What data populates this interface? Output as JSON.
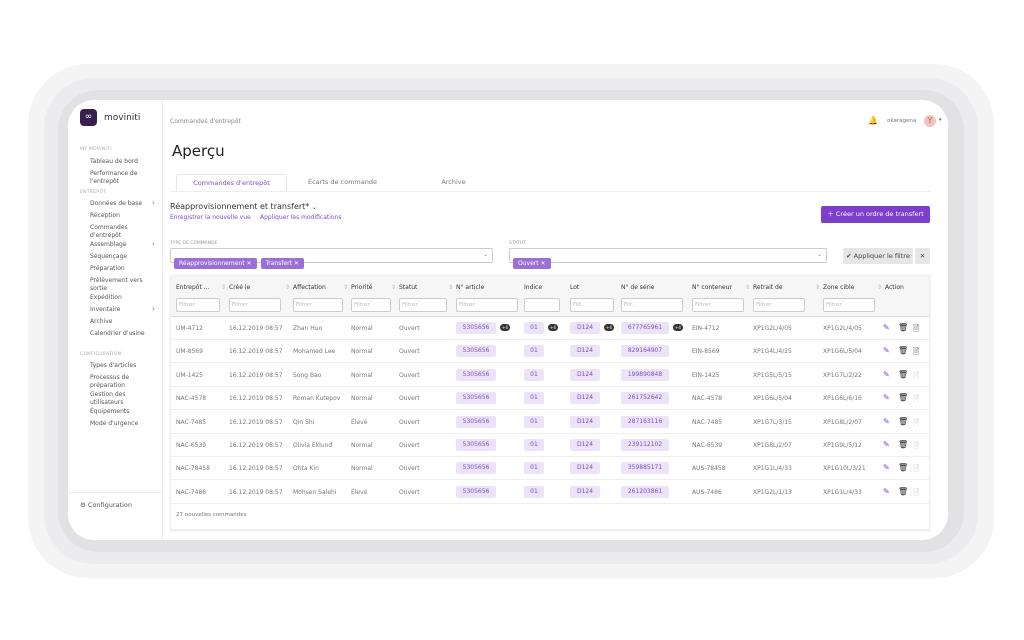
{
  "app": {
    "brand": "moviniti",
    "user": "okaragena"
  },
  "sidebar": {
    "sections": [
      {
        "label": "MY MOVINITI"
      },
      {
        "label": "ENTREPÔT"
      },
      {
        "label": "CONFIGURATION"
      }
    ],
    "items": [
      {
        "label": "Tableau de bord"
      },
      {
        "label": "Performance de l'entrepôt"
      },
      {
        "label": "Données de base",
        "chevron": true
      },
      {
        "label": "Réception"
      },
      {
        "label": "Commandes d'entrepôt"
      },
      {
        "label": "Assemblage",
        "chevron": true
      },
      {
        "label": "Séquençage"
      },
      {
        "label": "Préparation"
      },
      {
        "label": "Prélèvement vers sortie"
      },
      {
        "label": "Expédition"
      },
      {
        "label": "Inventaire",
        "chevron": true
      },
      {
        "label": "Archive"
      },
      {
        "label": "Calendrier d'usine"
      },
      {
        "label": "Types d'articles"
      },
      {
        "label": "Processus de préparation"
      },
      {
        "label": "Gestion des utilisateurs"
      },
      {
        "label": "Équipements"
      },
      {
        "label": "Mode d'urgence"
      }
    ],
    "footer": "Configuration"
  },
  "header": {
    "breadcrumb": "Commandes d'entrepôt",
    "title": "Aperçu"
  },
  "tabs": [
    {
      "label": "Commandes d'entrepôt",
      "active": true
    },
    {
      "label": "Écarts de commande"
    },
    {
      "label": "Archive"
    }
  ],
  "view": {
    "name": "Réapprovisionnement et transfert*",
    "save": "Enregistrer la nouvelle vue",
    "apply": "Appliquer les modifications",
    "create": "Créer un ordre de transfert"
  },
  "filters": {
    "type_label": "TYPE DE COMMANDE",
    "type_chips": [
      "Réapprovisionnement",
      "Transfert"
    ],
    "status_label": "STATUT",
    "status_chips": [
      "Ouvert"
    ],
    "apply": "Appliquer le filtre"
  },
  "table": {
    "columns": [
      "Entrepôt ...",
      "Créé le",
      "Affectation",
      "Priorité",
      "Statut",
      "N° article",
      "Indice",
      "Lot",
      "N° de série",
      "N° conteneur",
      "Retrait de",
      "Zone cible",
      "Action"
    ],
    "filter_placeholders": [
      "Filtrer",
      "Filtrer",
      "Filtrer",
      "Filtrer",
      "Filtrer",
      "Filtrer",
      "",
      "Filt...",
      "Filt...",
      "Filtrer",
      "Filtrer",
      "Filtrer"
    ],
    "rows": [
      [
        "UM-4712",
        "16.12.2019 08:57",
        "Zhan Huo",
        "Normal",
        "Ouvert",
        "5305656",
        "01",
        "D124",
        "677765961",
        "EIN-4712",
        "XP1G2L/4/05",
        "XP1G2L/4/05"
      ],
      [
        "UM-8569",
        "16.12.2019 08:57",
        "Mohamed Lee",
        "Normal",
        "Ouvert",
        "5305656",
        "01",
        "D124",
        "829164907",
        "EIN-8569",
        "XP1G4L/4/25",
        "XP1G6L/5/04"
      ],
      [
        "UM-1425",
        "16.12.2019 08:57",
        "Song Bao",
        "Normal",
        "Ouvert",
        "5305656",
        "01",
        "D124",
        "199890848",
        "EIN-1425",
        "XP1G5L/5/15",
        "XP1G7L/2/22"
      ],
      [
        "NAC-4578",
        "16.12.2019 08:57",
        "Roman Kutepov",
        "Normal",
        "Ouvert",
        "5305656",
        "01",
        "D124",
        "261752642",
        "NAC-4578",
        "XP1G6L/5/04",
        "XP1G6L/6/16"
      ],
      [
        "NAC-7485",
        "16.12.2019 08:57",
        "Qin Shi",
        "Élevé",
        "Ouvert",
        "5305656",
        "01",
        "D124",
        "287163116",
        "NAC-7485",
        "XP1G7L/3/15",
        "XP1G8L/2/07"
      ],
      [
        "NAC-6539",
        "16.12.2019 08:57",
        "Olivia Eklund",
        "Normal",
        "Ouvert",
        "5305656",
        "01",
        "D124",
        "239112102",
        "NAC-6539",
        "XP1G8L/2/07",
        "XP1G9L/5/12"
      ],
      [
        "NAC-78458",
        "16.12.2019 08:57",
        "Ohta Kin",
        "Normal",
        "Ouvert",
        "5305656",
        "01",
        "D124",
        "359885171",
        "AUS-78458",
        "XP1G1L/4/33",
        "XP1G10L/3/21"
      ],
      [
        "NAC-7486",
        "16.12.2019 08:57",
        "Mohsen Salehi",
        "Élevé",
        "Ouvert",
        "5305656",
        "01",
        "D124",
        "261203861",
        "AUS-7486",
        "XP1G2L/1/13",
        "XP1G1L/4/33"
      ]
    ],
    "first_row_badge": "+4",
    "footer": "27 nouvelles commandes"
  },
  "colors": {
    "accent": "#7b3fc9",
    "chip": "#9b6fd4",
    "tag_bg": "#ede3f8"
  }
}
